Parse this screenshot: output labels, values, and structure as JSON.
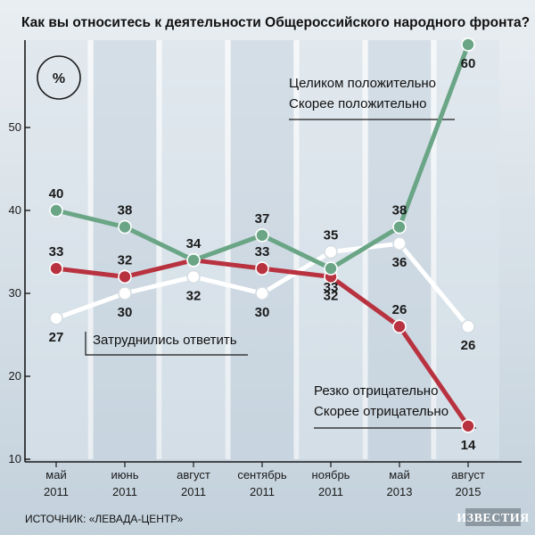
{
  "title": "Как вы относитесь к деятельности Общероссийского народного фронта?",
  "unit_badge": "%",
  "source": "ИСТОЧНИК: «ЛЕВАДА-ЦЕНТР»",
  "publisher_logo": "ИЗВЕСТИЯ",
  "colors": {
    "positive": "#6aa586",
    "negative": "#b8323f",
    "undecided": "#ffffff",
    "panel_light": "#dce5ec",
    "panel_dark": "#c7d4de",
    "axis": "#1a1a1a"
  },
  "chart_data": {
    "type": "line",
    "categories": [
      [
        "май",
        "2011"
      ],
      [
        "июнь",
        "2011"
      ],
      [
        "август",
        "2011"
      ],
      [
        "сентябрь",
        "2011"
      ],
      [
        "ноябрь",
        "2011"
      ],
      [
        "май",
        "2013"
      ],
      [
        "август",
        "2015"
      ]
    ],
    "ylim": [
      10,
      60
    ],
    "yticks": [
      10,
      20,
      30,
      40,
      50
    ],
    "grid": false,
    "series": [
      {
        "name": "Целиком положительно / Скорее положительно",
        "legend_lines": [
          "Целиком положительно",
          "Скорее положительно"
        ],
        "color_key": "positive",
        "values": [
          40,
          38,
          34,
          37,
          33,
          38,
          60
        ],
        "labels": [
          "40",
          "38",
          "34",
          "37",
          "33",
          "38",
          "60"
        ]
      },
      {
        "name": "Резко отрицательно / Скорее отрицательно",
        "legend_lines": [
          "Резко отрицательно",
          "Скорее отрицательно"
        ],
        "color_key": "negative",
        "values": [
          33,
          32,
          34,
          33,
          32,
          26,
          14
        ],
        "labels": [
          "33",
          "32",
          "",
          "33",
          "32",
          "26",
          "14"
        ]
      },
      {
        "name": "Затруднились ответить",
        "legend_lines": [
          "Затруднились ответить"
        ],
        "color_key": "undecided",
        "values": [
          27,
          30,
          32,
          30,
          35,
          36,
          26
        ],
        "labels": [
          "27",
          "30",
          "32",
          "30",
          "35",
          "36",
          "26"
        ]
      }
    ]
  }
}
